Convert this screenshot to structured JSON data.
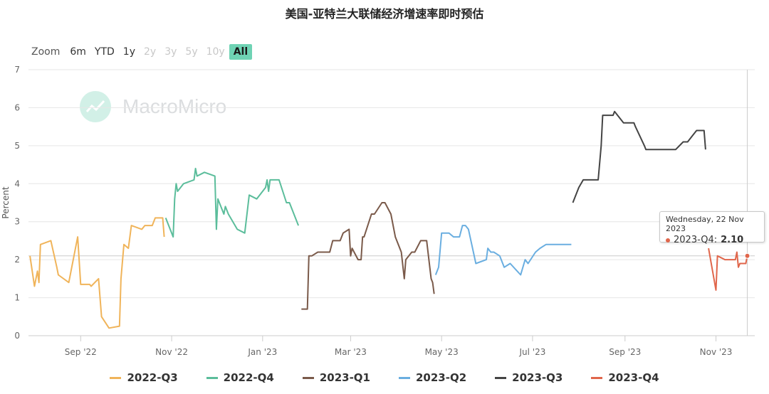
{
  "title": "美国-亚特兰大联储经济增速率即时预估",
  "zoom": {
    "label": "Zoom",
    "buttons": [
      {
        "label": "6m",
        "state": "enabled"
      },
      {
        "label": "YTD",
        "state": "enabled"
      },
      {
        "label": "1y",
        "state": "enabled"
      },
      {
        "label": "2y",
        "state": "disabled"
      },
      {
        "label": "3y",
        "state": "disabled"
      },
      {
        "label": "5y",
        "state": "disabled"
      },
      {
        "label": "10y",
        "state": "disabled"
      },
      {
        "label": "All",
        "state": "active"
      }
    ]
  },
  "watermark": "MacroMicro",
  "tooltip": {
    "date": "Wednesday, 22 Nov 2023",
    "series": "2023-Q4:",
    "value": "2.10",
    "color": "#e0664b"
  },
  "chart_data": {
    "type": "line",
    "ylabel": "Percent",
    "ylim": [
      0,
      7
    ],
    "yticks": [
      0,
      1,
      2,
      3,
      4,
      5,
      6,
      7
    ],
    "xlim": [
      "2022-07-28",
      "2023-11-27"
    ],
    "xticks": [
      {
        "date": "2022-09-01",
        "label": "Sep '22"
      },
      {
        "date": "2022-11-01",
        "label": "Nov '22"
      },
      {
        "date": "2023-01-01",
        "label": "Jan '23"
      },
      {
        "date": "2023-03-01",
        "label": "Mar '23"
      },
      {
        "date": "2023-05-01",
        "label": "May '23"
      },
      {
        "date": "2023-07-01",
        "label": "Jul '23"
      },
      {
        "date": "2023-09-01",
        "label": "Sep '23"
      },
      {
        "date": "2023-11-01",
        "label": "Nov '23"
      }
    ],
    "grid": true,
    "legend_position": "bottom",
    "series": [
      {
        "name": "2022-Q3",
        "color": "#f0b45a",
        "points": [
          [
            "2022-07-29",
            2.1
          ],
          [
            "2022-08-01",
            1.3
          ],
          [
            "2022-08-03",
            1.7
          ],
          [
            "2022-08-04",
            1.4
          ],
          [
            "2022-08-05",
            2.4
          ],
          [
            "2022-08-12",
            2.5
          ],
          [
            "2022-08-16",
            1.8
          ],
          [
            "2022-08-17",
            1.6
          ],
          [
            "2022-08-24",
            1.4
          ],
          [
            "2022-08-30",
            2.6
          ],
          [
            "2022-09-01",
            1.35
          ],
          [
            "2022-09-07",
            1.35
          ],
          [
            "2022-09-08",
            1.3
          ],
          [
            "2022-09-13",
            1.5
          ],
          [
            "2022-09-15",
            0.5
          ],
          [
            "2022-09-20",
            0.2
          ],
          [
            "2022-09-27",
            0.25
          ],
          [
            "2022-09-28",
            1.5
          ],
          [
            "2022-09-30",
            2.4
          ],
          [
            "2022-10-03",
            2.3
          ],
          [
            "2022-10-05",
            2.9
          ],
          [
            "2022-10-12",
            2.8
          ],
          [
            "2022-10-14",
            2.9
          ],
          [
            "2022-10-19",
            2.9
          ],
          [
            "2022-10-21",
            3.1
          ],
          [
            "2022-10-26",
            3.1
          ],
          [
            "2022-10-27",
            2.6
          ]
        ]
      },
      {
        "name": "2022-Q4",
        "color": "#5bbd9b",
        "points": [
          [
            "2022-10-28",
            3.1
          ],
          [
            "2022-11-01",
            2.7
          ],
          [
            "2022-11-02",
            2.6
          ],
          [
            "2022-11-03",
            3.6
          ],
          [
            "2022-11-04",
            4.0
          ],
          [
            "2022-11-05",
            3.8
          ],
          [
            "2022-11-09",
            4.0
          ],
          [
            "2022-11-16",
            4.1
          ],
          [
            "2022-11-17",
            4.4
          ],
          [
            "2022-11-18",
            4.2
          ],
          [
            "2022-11-23",
            4.3
          ],
          [
            "2022-11-30",
            4.2
          ],
          [
            "2022-12-01",
            2.8
          ],
          [
            "2022-12-02",
            3.6
          ],
          [
            "2022-12-06",
            3.2
          ],
          [
            "2022-12-07",
            3.4
          ],
          [
            "2022-12-09",
            3.2
          ],
          [
            "2022-12-15",
            2.8
          ],
          [
            "2022-12-20",
            2.7
          ],
          [
            "2022-12-23",
            3.7
          ],
          [
            "2022-12-28",
            3.6
          ],
          [
            "2023-01-03",
            3.9
          ],
          [
            "2023-01-04",
            4.1
          ],
          [
            "2023-01-05",
            3.8
          ],
          [
            "2023-01-06",
            4.1
          ],
          [
            "2023-01-10",
            4.1
          ],
          [
            "2023-01-12",
            4.1
          ],
          [
            "2023-01-17",
            3.5
          ],
          [
            "2023-01-19",
            3.5
          ],
          [
            "2023-01-25",
            2.9
          ]
        ]
      },
      {
        "name": "2023-Q1",
        "color": "#7a5a4a",
        "points": [
          [
            "2023-01-27",
            0.7
          ],
          [
            "2023-01-31",
            0.7
          ],
          [
            "2023-02-01",
            2.1
          ],
          [
            "2023-02-03",
            2.1
          ],
          [
            "2023-02-07",
            2.2
          ],
          [
            "2023-02-10",
            2.2
          ],
          [
            "2023-02-15",
            2.2
          ],
          [
            "2023-02-17",
            2.5
          ],
          [
            "2023-02-22",
            2.5
          ],
          [
            "2023-02-24",
            2.7
          ],
          [
            "2023-02-28",
            2.8
          ],
          [
            "2023-03-01",
            2.1
          ],
          [
            "2023-03-02",
            2.3
          ],
          [
            "2023-03-06",
            2.0
          ],
          [
            "2023-03-08",
            2.0
          ],
          [
            "2023-03-09",
            2.6
          ],
          [
            "2023-03-10",
            2.6
          ],
          [
            "2023-03-15",
            3.2
          ],
          [
            "2023-03-17",
            3.2
          ],
          [
            "2023-03-22",
            3.5
          ],
          [
            "2023-03-24",
            3.5
          ],
          [
            "2023-03-28",
            3.2
          ],
          [
            "2023-03-31",
            2.6
          ],
          [
            "2023-04-04",
            2.2
          ],
          [
            "2023-04-06",
            1.5
          ],
          [
            "2023-04-07",
            2.0
          ],
          [
            "2023-04-11",
            2.2
          ],
          [
            "2023-04-13",
            2.2
          ],
          [
            "2023-04-17",
            2.5
          ],
          [
            "2023-04-21",
            2.5
          ],
          [
            "2023-04-24",
            1.5
          ],
          [
            "2023-04-25",
            1.4
          ],
          [
            "2023-04-26",
            1.1
          ]
        ]
      },
      {
        "name": "2023-Q2",
        "color": "#6aaee0",
        "points": [
          [
            "2023-04-27",
            1.6
          ],
          [
            "2023-04-29",
            1.8
          ],
          [
            "2023-05-01",
            2.7
          ],
          [
            "2023-05-04",
            2.7
          ],
          [
            "2023-05-06",
            2.7
          ],
          [
            "2023-05-09",
            2.6
          ],
          [
            "2023-05-13",
            2.6
          ],
          [
            "2023-05-15",
            2.9
          ],
          [
            "2023-05-17",
            2.9
          ],
          [
            "2023-05-19",
            2.8
          ],
          [
            "2023-05-24",
            1.9
          ],
          [
            "2023-05-31",
            2.0
          ],
          [
            "2023-06-01",
            2.3
          ],
          [
            "2023-06-03",
            2.2
          ],
          [
            "2023-06-05",
            2.2
          ],
          [
            "2023-06-09",
            2.1
          ],
          [
            "2023-06-12",
            1.8
          ],
          [
            "2023-06-16",
            1.9
          ],
          [
            "2023-06-23",
            1.6
          ],
          [
            "2023-06-26",
            2.0
          ],
          [
            "2023-06-28",
            1.9
          ],
          [
            "2023-07-03",
            2.2
          ],
          [
            "2023-07-06",
            2.3
          ],
          [
            "2023-07-10",
            2.4
          ],
          [
            "2023-07-14",
            2.4
          ],
          [
            "2023-07-20",
            2.4
          ],
          [
            "2023-07-27",
            2.4
          ]
        ]
      },
      {
        "name": "2023-Q3",
        "color": "#444444",
        "points": [
          [
            "2023-07-28",
            3.5
          ],
          [
            "2023-08-01",
            3.9
          ],
          [
            "2023-08-04",
            4.1
          ],
          [
            "2023-08-08",
            4.1
          ],
          [
            "2023-08-11",
            4.1
          ],
          [
            "2023-08-14",
            4.1
          ],
          [
            "2023-08-16",
            5.0
          ],
          [
            "2023-08-17",
            5.8
          ],
          [
            "2023-08-21",
            5.8
          ],
          [
            "2023-08-24",
            5.8
          ],
          [
            "2023-08-25",
            5.9
          ],
          [
            "2023-08-31",
            5.6
          ],
          [
            "2023-09-01",
            5.6
          ],
          [
            "2023-09-05",
            5.6
          ],
          [
            "2023-09-07",
            5.6
          ],
          [
            "2023-09-08",
            5.5
          ],
          [
            "2023-09-14",
            5.0
          ],
          [
            "2023-09-15",
            4.9
          ],
          [
            "2023-09-18",
            4.9
          ],
          [
            "2023-09-27",
            4.9
          ],
          [
            "2023-09-28",
            4.9
          ],
          [
            "2023-10-02",
            4.9
          ],
          [
            "2023-10-05",
            4.9
          ],
          [
            "2023-10-10",
            5.1
          ],
          [
            "2023-10-13",
            5.1
          ],
          [
            "2023-10-17",
            5.3
          ],
          [
            "2023-10-19",
            5.4
          ],
          [
            "2023-10-24",
            5.4
          ],
          [
            "2023-10-25",
            4.9
          ]
        ]
      },
      {
        "name": "2023-Q4",
        "color": "#e0664b",
        "points": [
          [
            "2023-10-27",
            2.3
          ],
          [
            "2023-11-01",
            1.2
          ],
          [
            "2023-11-02",
            2.1
          ],
          [
            "2023-11-07",
            2.0
          ],
          [
            "2023-11-10",
            2.0
          ],
          [
            "2023-11-14",
            2.0
          ],
          [
            "2023-11-15",
            2.2
          ],
          [
            "2023-11-16",
            1.8
          ],
          [
            "2023-11-17",
            1.9
          ],
          [
            "2023-11-21",
            1.9
          ],
          [
            "2023-11-22",
            2.1
          ]
        ]
      }
    ]
  }
}
